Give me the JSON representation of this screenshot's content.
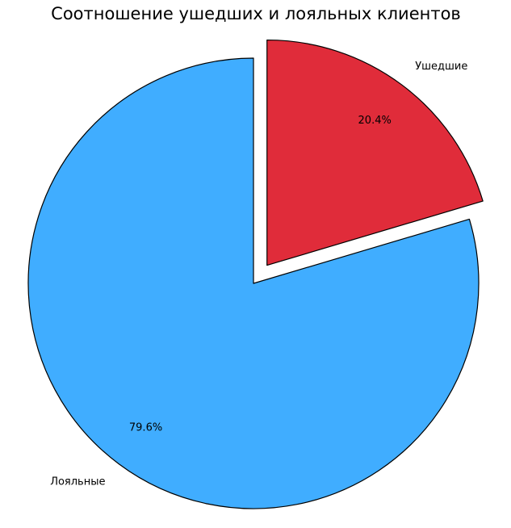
{
  "chart_data": {
    "type": "pie",
    "title": "Соотношение ушедших и лояльных клиентов",
    "start_angle_deg": 90,
    "direction": "clockwise",
    "slices": [
      {
        "label": "Ушедшие",
        "value": 20.4,
        "pct_text": "20.4%",
        "color": "#e02c3a",
        "exploded": true
      },
      {
        "label": "Лояльные",
        "value": 79.6,
        "pct_text": "79.6%",
        "color": "#40adff",
        "exploded": false
      }
    ]
  }
}
